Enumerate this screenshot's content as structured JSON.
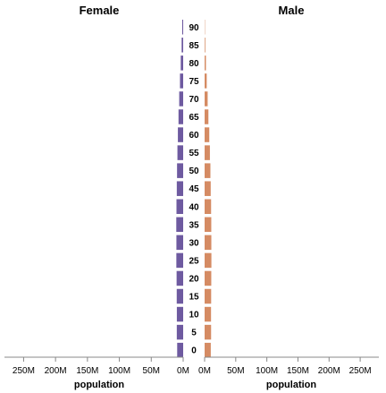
{
  "chart_data": {
    "type": "bar",
    "orientation": "horizontal",
    "title": "",
    "panels": [
      {
        "name": "Female",
        "color": "#6e5aa0",
        "xlabel": "population",
        "direction": "reversed",
        "xticks": [
          "250M",
          "200M",
          "150M",
          "100M",
          "50M",
          "0M"
        ],
        "xtick_values": [
          250000000,
          200000000,
          150000000,
          100000000,
          50000000,
          0
        ],
        "xlim": [
          0,
          280000000
        ]
      },
      {
        "name": "Male",
        "color": "#d58b63",
        "xlabel": "population",
        "direction": "normal",
        "xticks": [
          "0M",
          "50M",
          "100M",
          "150M",
          "200M",
          "250M"
        ],
        "xtick_values": [
          0,
          50000000,
          100000000,
          150000000,
          200000000,
          250000000
        ],
        "xlim": [
          0,
          280000000
        ]
      }
    ],
    "categories": [
      "90",
      "85",
      "80",
      "75",
      "70",
      "65",
      "60",
      "55",
      "50",
      "45",
      "40",
      "35",
      "30",
      "25",
      "20",
      "15",
      "10",
      "5",
      "0"
    ],
    "series": [
      {
        "name": "Female",
        "values": [
          1500000,
          2400000,
          3800000,
          5000000,
          6200000,
          7300000,
          8300000,
          9000000,
          9600000,
          10000000,
          10500000,
          10800000,
          10600000,
          10700000,
          10300000,
          10100000,
          9900000,
          10000000,
          9400000
        ]
      },
      {
        "name": "Male",
        "values": [
          500000,
          1100000,
          2100000,
          3400000,
          4900000,
          6100000,
          7500000,
          8500000,
          9300000,
          9800000,
          10400000,
          10700000,
          10800000,
          10900000,
          10700000,
          10500000,
          10300000,
          10400000,
          9900000
        ]
      }
    ],
    "grid": false,
    "legend": "none"
  }
}
